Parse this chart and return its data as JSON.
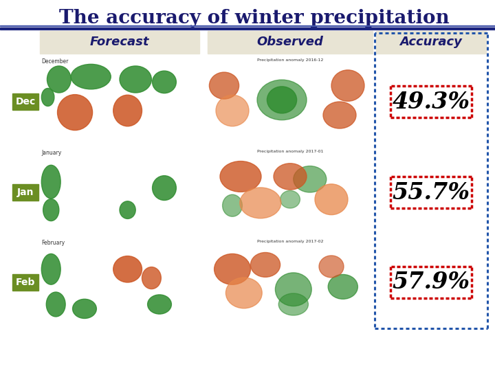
{
  "title": "The accuracy of winter precipitation",
  "title_fontsize": 20,
  "title_color": "#1a1a6e",
  "row_labels": [
    "Dec",
    "Jan",
    "Feb"
  ],
  "row_label_color": "#ffffff",
  "row_label_bg": "#6b8e23",
  "col_headers": [
    "Forecast",
    "Observed",
    "Accuracy"
  ],
  "col_header_color": "#1a1a6e",
  "col_header_fontsize": 13,
  "accuracy_values": [
    "49.3%",
    "55.7%",
    "57.9%"
  ],
  "accuracy_fontsize": 24,
  "accuracy_box_color": "#cc0000",
  "outer_border_color": "#2255aa",
  "bg_color": "#ffffff",
  "header_bg": "#e8e4d4",
  "map_bg": "#ffffff"
}
